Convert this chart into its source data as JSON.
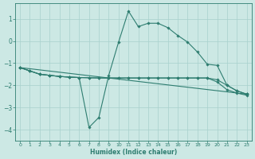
{
  "xlabel": "Humidex (Indice chaleur)",
  "background_color": "#cce8e4",
  "line_color": "#2e7d70",
  "grid_color": "#a8d0cc",
  "xlim": [
    -0.5,
    23.5
  ],
  "ylim": [
    -4.5,
    1.7
  ],
  "xticks": [
    0,
    1,
    2,
    3,
    4,
    5,
    6,
    7,
    8,
    9,
    10,
    11,
    12,
    13,
    14,
    15,
    16,
    17,
    18,
    19,
    20,
    21,
    22,
    23
  ],
  "yticks": [
    -4,
    -3,
    -2,
    -1,
    0,
    1
  ],
  "lines": [
    {
      "x": [
        0,
        1,
        2,
        3,
        4,
        5,
        6,
        7,
        8,
        9,
        10,
        11,
        12,
        13,
        14,
        15,
        16,
        17,
        18,
        19,
        20,
        21,
        22,
        23
      ],
      "y": [
        -1.2,
        -1.35,
        -1.5,
        -1.55,
        -1.6,
        -1.63,
        -1.65,
        -1.66,
        -1.67,
        -1.67,
        -1.67,
        -1.67,
        -1.67,
        -1.67,
        -1.67,
        -1.67,
        -1.67,
        -1.67,
        -1.67,
        -1.67,
        -1.75,
        -2.0,
        -2.25,
        -2.4
      ]
    },
    {
      "x": [
        0,
        1,
        2,
        3,
        4,
        5,
        6,
        7,
        8,
        9,
        10,
        11,
        12,
        13,
        14,
        15,
        16,
        17,
        18,
        19,
        20,
        21,
        22,
        23
      ],
      "y": [
        -1.2,
        -1.35,
        -1.5,
        -1.55,
        -1.6,
        -1.63,
        -1.65,
        -3.9,
        -3.45,
        -1.55,
        -0.05,
        1.35,
        0.65,
        0.8,
        0.8,
        0.6,
        0.25,
        -0.05,
        -0.5,
        -1.05,
        -1.1,
        -2.0,
        -2.25,
        -2.4
      ]
    },
    {
      "x": [
        0,
        1,
        2,
        3,
        4,
        5,
        6,
        7,
        8,
        9,
        10,
        11,
        12,
        13,
        14,
        15,
        16,
        17,
        18,
        19,
        20,
        21,
        22,
        23
      ],
      "y": [
        -1.2,
        -1.35,
        -1.5,
        -1.55,
        -1.6,
        -1.63,
        -1.65,
        -1.66,
        -1.67,
        -1.67,
        -1.67,
        -1.67,
        -1.67,
        -1.67,
        -1.67,
        -1.67,
        -1.67,
        -1.67,
        -1.67,
        -1.67,
        -1.85,
        -2.2,
        -2.35,
        -2.45
      ]
    },
    {
      "x": [
        0,
        23
      ],
      "y": [
        -1.2,
        -2.4
      ]
    }
  ]
}
